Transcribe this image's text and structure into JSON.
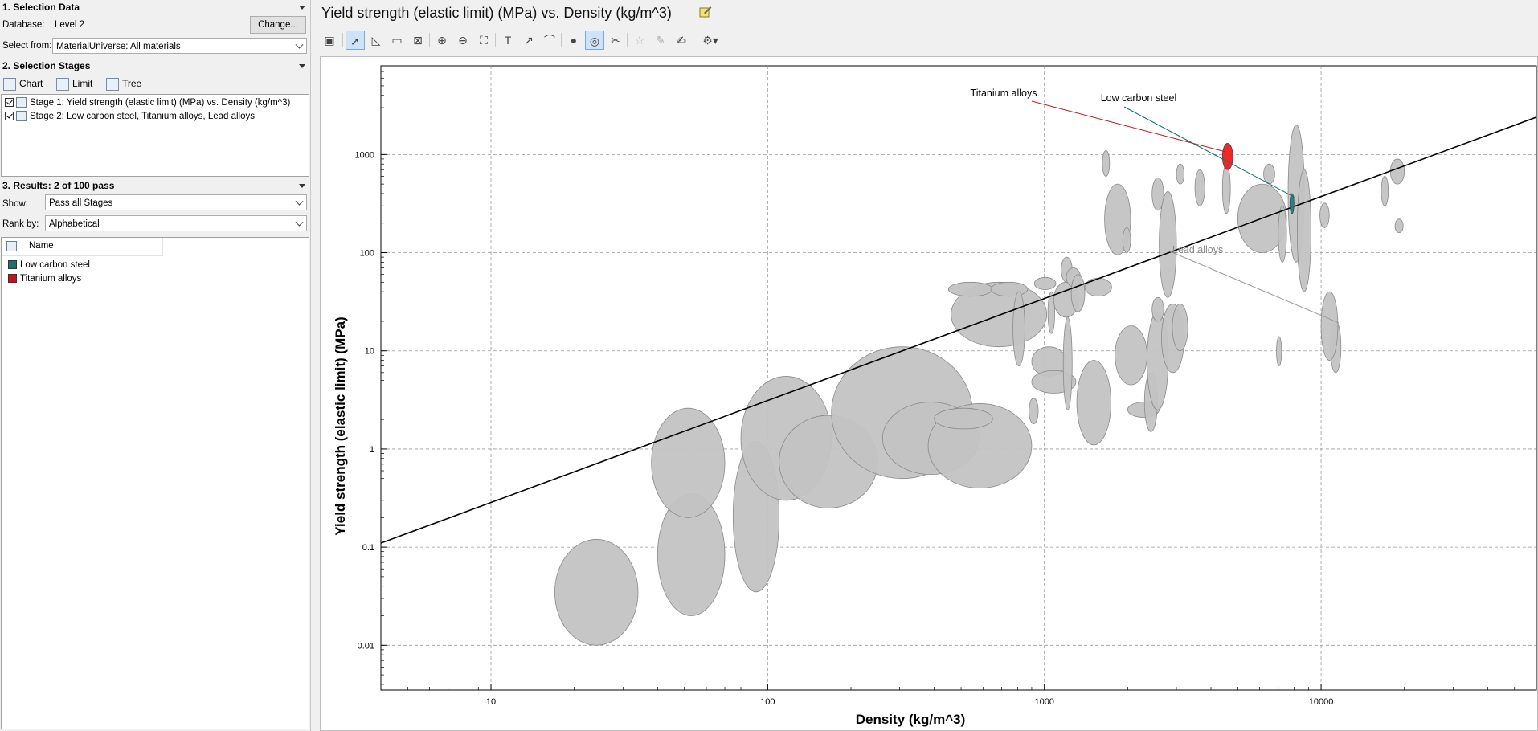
{
  "selection_data": {
    "header": "1. Selection Data",
    "database_label": "Database:",
    "database_value": "Level 2",
    "change_button": "Change...",
    "select_from_label": "Select from:",
    "select_from_value": "MaterialUniverse: All materials"
  },
  "selection_stages": {
    "header": "2. Selection Stages",
    "buttons": {
      "chart": "Chart",
      "limit": "Limit",
      "tree": "Tree"
    },
    "stages": [
      "Stage 1: Yield strength (elastic limit) (MPa) vs. Density (kg/m^3)",
      "Stage 2: Low carbon steel, Titanium alloys, Lead alloys"
    ]
  },
  "results": {
    "header": "3. Results: 2 of 100 pass",
    "show_label": "Show:",
    "show_value": "Pass all Stages",
    "rank_label": "Rank by:",
    "rank_value": "Alphabetical",
    "column_name": "Name",
    "items": [
      {
        "name": "Low carbon steel",
        "color": "#1a6f6f"
      },
      {
        "name": "Titanium alloys",
        "color": "#c0161a"
      }
    ]
  },
  "chart_title": "Yield strength (elastic limit) (MPa) vs. Density (kg/m^3)",
  "chart_data": {
    "type": "scatter",
    "title": "Yield strength (elastic limit) (MPa) vs. Density (kg/m^3)",
    "xlabel": "Density (kg/m^3)",
    "ylabel": "Yield strength (elastic limit) (MPa)",
    "x_scale": "log",
    "y_scale": "log",
    "xlim": [
      4,
      60000
    ],
    "ylim": [
      0.0035,
      8000
    ],
    "x_ticks": [
      "10",
      "100",
      "1000",
      "10000"
    ],
    "y_ticks": [
      "0.01",
      "0.1",
      "1",
      "10",
      "100",
      "1000"
    ],
    "grid": true,
    "selection_line": {
      "x": [
        4,
        60000
      ],
      "y": [
        0.11,
        2400
      ]
    },
    "highlighted": [
      {
        "name": "Titanium alloys",
        "density": [
          4400,
          4800
        ],
        "yield": [
          700,
          1300
        ],
        "color": "#ee1c1c"
      },
      {
        "name": "Low carbon steel",
        "density": [
          7800,
          7900
        ],
        "yield": [
          250,
          400
        ],
        "color": "#1d7f86"
      },
      {
        "name": "Lead alloys",
        "density": [
          10000,
          11500
        ],
        "yield": [
          8,
          40
        ],
        "color": "#c3c3c3"
      }
    ],
    "bubbles": [
      {
        "density": [
          17,
          34
        ],
        "yield": [
          0.01,
          0.12
        ]
      },
      {
        "density": [
          40,
          70
        ],
        "yield": [
          0.02,
          0.35
        ]
      },
      {
        "density": [
          38,
          70
        ],
        "yield": [
          0.2,
          2.6
        ]
      },
      {
        "density": [
          75,
          110
        ],
        "yield": [
          0.035,
          1.2
        ]
      },
      {
        "density": [
          80,
          170
        ],
        "yield": [
          0.3,
          5.5
        ]
      },
      {
        "density": [
          110,
          250
        ],
        "yield": [
          0.25,
          2.2
        ]
      },
      {
        "density": [
          170,
          550
        ],
        "yield": [
          0.5,
          11
        ]
      },
      {
        "density": [
          260,
          580
        ],
        "yield": [
          0.55,
          3
        ]
      },
      {
        "density": [
          380,
          900
        ],
        "yield": [
          0.4,
          2.9
        ]
      },
      {
        "density": [
          400,
          650
        ],
        "yield": [
          1.6,
          2.6
        ]
      },
      {
        "density": [
          460,
          1020
        ],
        "yield": [
          11,
          50
        ]
      },
      {
        "density": [
          450,
          650
        ],
        "yield": [
          36,
          50
        ]
      },
      {
        "density": [
          640,
          870
        ],
        "yield": [
          36,
          50
        ]
      },
      {
        "density": [
          770,
          850
        ],
        "yield": [
          7,
          40
        ]
      },
      {
        "density": [
          900,
          1200
        ],
        "yield": [
          5.5,
          11
        ]
      },
      {
        "density": [
          900,
          1300
        ],
        "yield": [
          3.7,
          6.3
        ]
      },
      {
        "density": [
          880,
          950
        ],
        "yield": [
          1.8,
          3.3
        ]
      },
      {
        "density": [
          920,
          1100
        ],
        "yield": [
          42,
          56
        ]
      },
      {
        "density": [
          1030,
          1090
        ],
        "yield": [
          15,
          40
        ]
      },
      {
        "density": [
          1080,
          1330
        ],
        "yield": [
          22,
          50
        ]
      },
      {
        "density": [
          1150,
          1260
        ],
        "yield": [
          50,
          90
        ]
      },
      {
        "density": [
          1170,
          1260
        ],
        "yield": [
          2.5,
          22
        ]
      },
      {
        "density": [
          1200,
          1350
        ],
        "yield": [
          45,
          70
        ]
      },
      {
        "density": [
          1310,
          1740
        ],
        "yield": [
          1.1,
          8
        ]
      },
      {
        "density": [
          1250,
          1400
        ],
        "yield": [
          25,
          60
        ]
      },
      {
        "density": [
          1400,
          1750
        ],
        "yield": [
          36,
          55
        ]
      },
      {
        "density": [
          1620,
          1720
        ],
        "yield": [
          600,
          1100
        ]
      },
      {
        "density": [
          1650,
          2050
        ],
        "yield": [
          95,
          500
        ]
      },
      {
        "density": [
          1920,
          2050
        ],
        "yield": [
          100,
          180
        ]
      },
      {
        "density": [
          1800,
          2350
        ],
        "yield": [
          4.5,
          18
        ]
      },
      {
        "density": [
          2000,
          2600
        ],
        "yield": [
          2.1,
          3
        ]
      },
      {
        "density": [
          2300,
          2560
        ],
        "yield": [
          1.5,
          6
        ]
      },
      {
        "density": [
          2350,
          2800
        ],
        "yield": [
          2.5,
          25
        ]
      },
      {
        "density": [
          2450,
          2700
        ],
        "yield": [
          20,
          35
        ]
      },
      {
        "density": [
          2450,
          2700
        ],
        "yield": [
          270,
          580
        ]
      },
      {
        "density": [
          2600,
          3000
        ],
        "yield": [
          35,
          420
        ]
      },
      {
        "density": [
          2650,
          3200
        ],
        "yield": [
          6,
          30
        ]
      },
      {
        "density": [
          2900,
          3300
        ],
        "yield": [
          10,
          30
        ]
      },
      {
        "density": [
          3000,
          3200
        ],
        "yield": [
          500,
          800
        ]
      },
      {
        "density": [
          3500,
          3800
        ],
        "yield": [
          300,
          700
        ]
      },
      {
        "density": [
          4400,
          4700
        ],
        "yield": [
          250,
          800
        ]
      },
      {
        "density": [
          5000,
          7500
        ],
        "yield": [
          100,
          500
        ]
      },
      {
        "density": [
          6200,
          6800
        ],
        "yield": [
          500,
          800
        ]
      },
      {
        "density": [
          6900,
          7200
        ],
        "yield": [
          7,
          14
        ]
      },
      {
        "density": [
          7000,
          7500
        ],
        "yield": [
          80,
          300
        ]
      },
      {
        "density": [
          7600,
          8700
        ],
        "yield": [
          80,
          2000
        ]
      },
      {
        "density": [
          8200,
          9200
        ],
        "yield": [
          40,
          700
        ]
      },
      {
        "density": [
          9900,
          10700
        ],
        "yield": [
          180,
          320
        ]
      },
      {
        "density": [
          10800,
          11800
        ],
        "yield": [
          6,
          20
        ]
      },
      {
        "density": [
          16500,
          17500
        ],
        "yield": [
          300,
          600
        ]
      },
      {
        "density": [
          17800,
          20000
        ],
        "yield": [
          500,
          900
        ]
      },
      {
        "density": [
          18500,
          19800
        ],
        "yield": [
          160,
          220
        ]
      }
    ]
  },
  "annotations": {
    "titanium": "Titanium alloys",
    "low_carbon": "Low carbon steel",
    "lead": "Lead alloys"
  }
}
